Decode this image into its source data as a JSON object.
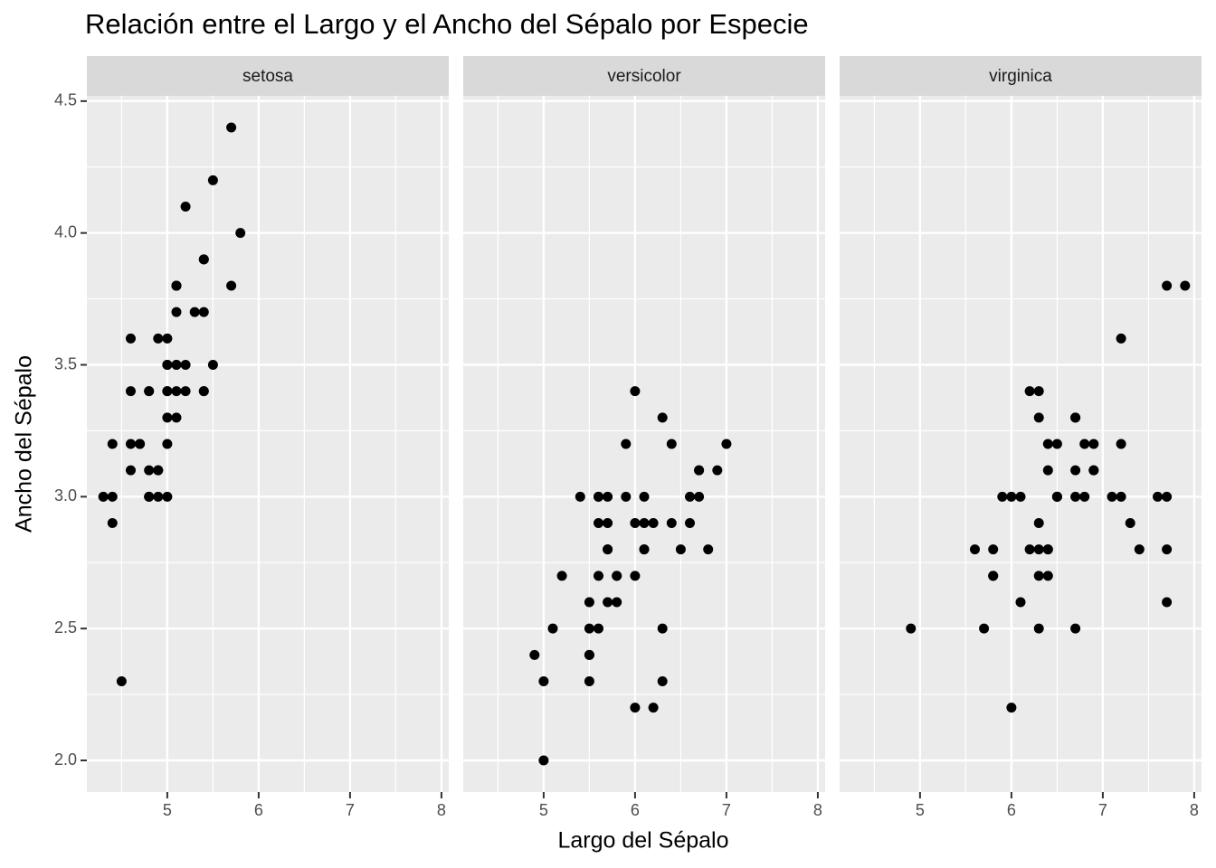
{
  "title": "Relación entre el Largo y el Ancho del Sépalo por Especie",
  "x_label": "Largo del Sépalo",
  "y_label": "Ancho del Sépalo",
  "chart_data": [
    {
      "type": "scatter",
      "title": "setosa",
      "color": "#000000",
      "grid": true,
      "xlim": [
        4.12,
        8.08
      ],
      "ylim": [
        1.88,
        4.52
      ],
      "xticks": [
        5,
        6,
        7,
        8
      ],
      "xminorticks": [
        4.5,
        5.5,
        6.5,
        7.5
      ],
      "yticks": [
        {
          "value": 2,
          "label": "2.0"
        },
        2.5,
        {
          "value": 3,
          "label": "3.0"
        },
        3.5,
        {
          "value": 4,
          "label": "4.0"
        },
        4.5
      ],
      "yminorticks": [
        2.25,
        2.75,
        3.25,
        3.75,
        4.25
      ],
      "x": [
        5.1,
        4.9,
        4.7,
        4.6,
        5.0,
        5.4,
        4.6,
        5.0,
        4.4,
        4.9,
        5.4,
        4.8,
        4.8,
        4.3,
        5.8,
        5.7,
        5.4,
        5.1,
        5.7,
        5.1,
        5.4,
        5.1,
        4.6,
        5.1,
        4.8,
        5.0,
        5.0,
        5.2,
        5.2,
        4.7,
        4.8,
        5.4,
        5.2,
        5.5,
        4.9,
        5.0,
        5.5,
        4.9,
        4.4,
        5.1,
        5.0,
        4.5,
        4.4,
        5.0,
        5.1,
        4.8,
        5.1,
        4.6,
        5.3,
        5.0
      ],
      "values": [
        3.5,
        3.0,
        3.2,
        3.1,
        3.6,
        3.9,
        3.4,
        3.4,
        2.9,
        3.1,
        3.7,
        3.4,
        3.0,
        3.0,
        4.0,
        4.4,
        3.9,
        3.5,
        3.8,
        3.8,
        3.4,
        3.7,
        3.6,
        3.3,
        3.4,
        3.0,
        3.4,
        3.5,
        3.4,
        3.2,
        3.1,
        3.4,
        4.1,
        4.2,
        3.1,
        3.2,
        3.5,
        3.6,
        3.0,
        3.4,
        3.5,
        2.3,
        3.2,
        3.5,
        3.8,
        3.0,
        3.8,
        3.2,
        3.7,
        3.3
      ]
    },
    {
      "type": "scatter",
      "title": "versicolor",
      "color": "#000000",
      "grid": true,
      "xlim": [
        4.12,
        8.08
      ],
      "ylim": [
        1.88,
        4.52
      ],
      "xticks": [
        5,
        6,
        7,
        8
      ],
      "xminorticks": [
        4.5,
        5.5,
        6.5,
        7.5
      ],
      "yticks": [
        {
          "value": 2,
          "label": "2.0"
        },
        2.5,
        {
          "value": 3,
          "label": "3.0"
        },
        3.5,
        {
          "value": 4,
          "label": "4.0"
        },
        4.5
      ],
      "yminorticks": [
        2.25,
        2.75,
        3.25,
        3.75,
        4.25
      ],
      "x": [
        7.0,
        6.4,
        6.9,
        5.5,
        6.5,
        5.7,
        6.3,
        4.9,
        6.6,
        5.2,
        5.0,
        5.9,
        6.0,
        6.1,
        5.6,
        6.7,
        5.6,
        5.8,
        6.2,
        5.6,
        5.9,
        6.1,
        6.3,
        6.1,
        6.4,
        6.6,
        6.8,
        6.7,
        6.0,
        5.7,
        5.5,
        5.5,
        5.8,
        6.0,
        5.4,
        6.0,
        6.7,
        6.3,
        5.6,
        5.5,
        5.5,
        6.1,
        5.8,
        5.0,
        5.6,
        5.7,
        5.7,
        6.2,
        5.1,
        5.7
      ],
      "values": [
        3.2,
        3.2,
        3.1,
        2.3,
        2.8,
        2.8,
        3.3,
        2.4,
        2.9,
        2.7,
        2.0,
        3.0,
        2.2,
        2.9,
        2.9,
        3.1,
        3.0,
        2.7,
        2.2,
        2.5,
        3.2,
        2.8,
        2.5,
        2.8,
        2.9,
        3.0,
        2.8,
        3.0,
        2.9,
        2.6,
        2.4,
        2.4,
        2.7,
        2.7,
        3.0,
        3.4,
        3.1,
        2.3,
        3.0,
        2.5,
        2.6,
        3.0,
        2.6,
        2.3,
        2.7,
        3.0,
        2.9,
        2.9,
        2.5,
        2.8
      ]
    },
    {
      "type": "scatter",
      "title": "virginica",
      "color": "#000000",
      "grid": true,
      "xlim": [
        4.12,
        8.08
      ],
      "ylim": [
        1.88,
        4.52
      ],
      "xticks": [
        5,
        6,
        7,
        8
      ],
      "xminorticks": [
        4.5,
        5.5,
        6.5,
        7.5
      ],
      "yticks": [
        {
          "value": 2,
          "label": "2.0"
        },
        2.5,
        {
          "value": 3,
          "label": "3.0"
        },
        3.5,
        {
          "value": 4,
          "label": "4.0"
        },
        4.5
      ],
      "yminorticks": [
        2.25,
        2.75,
        3.25,
        3.75,
        4.25
      ],
      "x": [
        6.3,
        5.8,
        7.1,
        6.3,
        6.5,
        7.6,
        4.9,
        7.3,
        6.7,
        7.2,
        6.5,
        6.4,
        6.8,
        5.7,
        5.8,
        6.4,
        6.5,
        7.7,
        7.7,
        6.0,
        6.9,
        5.6,
        7.7,
        6.3,
        6.7,
        7.2,
        6.2,
        6.1,
        6.4,
        7.2,
        7.4,
        7.9,
        6.4,
        6.3,
        6.1,
        7.7,
        6.3,
        6.4,
        6.0,
        6.9,
        6.7,
        6.9,
        5.8,
        6.8,
        6.7,
        6.7,
        6.3,
        6.5,
        6.2,
        5.9
      ],
      "values": [
        3.3,
        2.7,
        3.0,
        2.9,
        3.0,
        3.0,
        2.5,
        2.9,
        2.5,
        3.6,
        3.2,
        2.7,
        3.0,
        2.5,
        2.8,
        3.2,
        3.0,
        3.8,
        2.6,
        2.2,
        3.2,
        2.8,
        2.8,
        2.7,
        3.3,
        3.2,
        2.8,
        3.0,
        2.8,
        3.0,
        2.8,
        3.8,
        2.8,
        2.8,
        2.6,
        3.0,
        3.4,
        3.1,
        3.0,
        3.1,
        3.1,
        3.1,
        2.7,
        3.2,
        3.3,
        3.0,
        2.5,
        3.0,
        3.4,
        3.0
      ]
    }
  ]
}
